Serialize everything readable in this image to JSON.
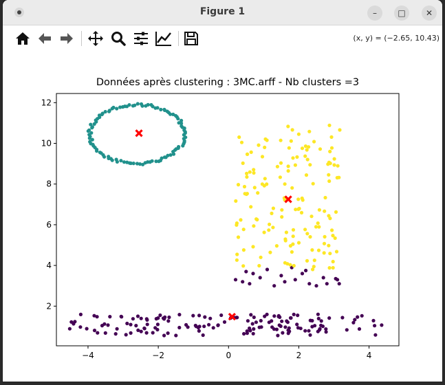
{
  "window": {
    "title": "Figure 1"
  },
  "window_controls": {
    "minimize": "–",
    "maximize": "□",
    "close": "✕"
  },
  "toolbar": {
    "items": [
      {
        "name": "home-icon"
      },
      {
        "name": "back-arrow-icon"
      },
      {
        "name": "forward-arrow-icon"
      },
      {
        "name": "pan-icon"
      },
      {
        "name": "zoom-icon"
      },
      {
        "name": "subplots-icon"
      },
      {
        "name": "edit-axes-icon"
      },
      {
        "name": "save-icon"
      }
    ],
    "coords": "(x, y) = (−2.65, 10.43)"
  },
  "chart_data": {
    "type": "scatter",
    "title": "Données après clustering : 3MC.arff - Nb clusters =3",
    "xlabel": "",
    "ylabel": "",
    "xlim": [
      -4.9,
      4.85
    ],
    "ylim": [
      0.05,
      12.45
    ],
    "xticks": [
      -4,
      -2,
      0,
      2,
      4
    ],
    "xtick_labels": [
      "−4",
      "−2",
      "0",
      "2",
      "4"
    ],
    "yticks": [
      2,
      4,
      6,
      8,
      10,
      12
    ],
    "ytick_labels": [
      "2",
      "4",
      "6",
      "8",
      "10",
      "12"
    ],
    "grid": false,
    "colors": {
      "cluster_0": "#440154",
      "cluster_1": "#21918c",
      "cluster_2": "#fde725",
      "centroid": "#ff0000"
    },
    "clusters": [
      {
        "id": 0,
        "shape": "band",
        "x_range": [
          -4.6,
          4.4
        ],
        "y_range": [
          0.55,
          1.6
        ],
        "extra_points": [
          [
            0.2,
            3.3
          ],
          [
            0.4,
            3.2
          ],
          [
            0.5,
            3.7
          ],
          [
            0.6,
            3.1
          ],
          [
            0.7,
            3.6
          ],
          [
            0.9,
            3.4
          ],
          [
            1.1,
            3.8
          ],
          [
            1.3,
            3.0
          ],
          [
            1.5,
            3.5
          ],
          [
            1.6,
            3.2
          ],
          [
            1.8,
            3.9
          ],
          [
            1.9,
            3.3
          ],
          [
            2.1,
            3.6
          ],
          [
            2.3,
            3.1
          ],
          [
            2.5,
            3.0
          ],
          [
            2.7,
            3.4
          ],
          [
            2.8,
            3.1
          ],
          [
            3.1,
            3.3
          ],
          [
            3.15,
            3.1
          ],
          [
            2.2,
            3.75
          ],
          [
            3.05,
            3.35
          ]
        ]
      },
      {
        "id": 1,
        "shape": "ring",
        "center": [
          -2.6,
          10.45
        ],
        "radii": [
          1.35,
          1.45
        ]
      },
      {
        "id": 2,
        "shape": "rect",
        "x_range": [
          0.2,
          3.2
        ],
        "y_range": [
          3.8,
          10.9
        ]
      }
    ],
    "centroids": [
      [
        -2.55,
        10.5
      ],
      [
        0.1,
        1.48
      ],
      [
        1.7,
        7.25
      ]
    ]
  }
}
